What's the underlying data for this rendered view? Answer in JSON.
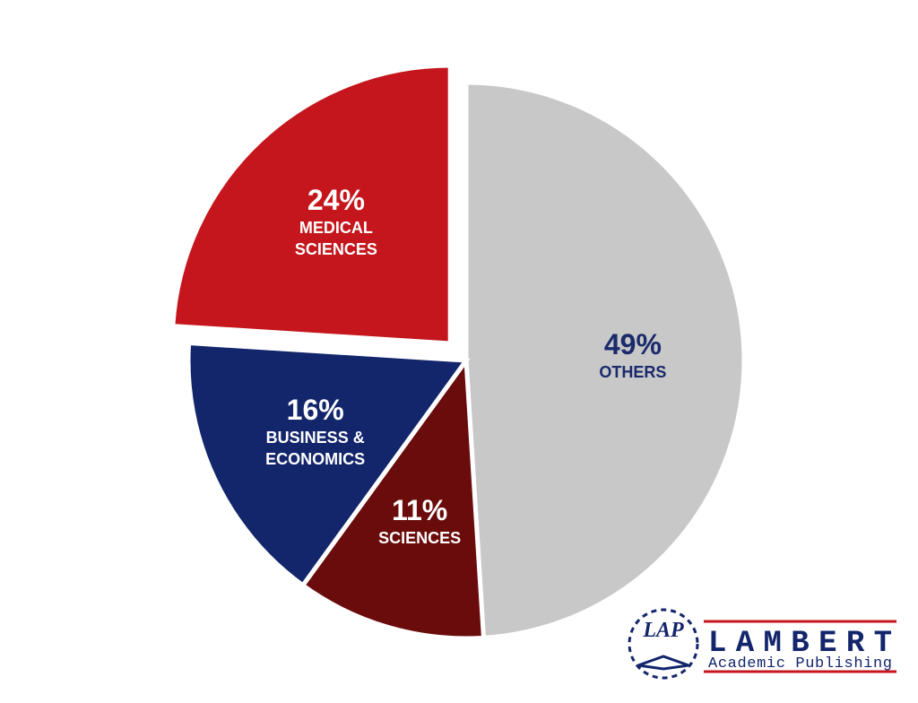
{
  "chart_data": {
    "type": "pie",
    "categories": [
      "OTHERS",
      "SCIENCES",
      "BUSINESS & ECONOMICS",
      "MEDICAL SCIENCES"
    ],
    "values": [
      49,
      11,
      16,
      24
    ],
    "value_labels": [
      "49%",
      "11%",
      "16%",
      "24%"
    ],
    "colors": [
      "#c8c8c8",
      "#6b0c0c",
      "#13256b",
      "#c4161c"
    ],
    "label_colors": [
      "#1a2a6c",
      "#ffffff",
      "#ffffff",
      "#ffffff"
    ],
    "exploded": [
      false,
      false,
      false,
      true
    ]
  },
  "logo": {
    "mark": "LAP",
    "name": "LAMBERT",
    "tagline": "Academic Publishing"
  }
}
